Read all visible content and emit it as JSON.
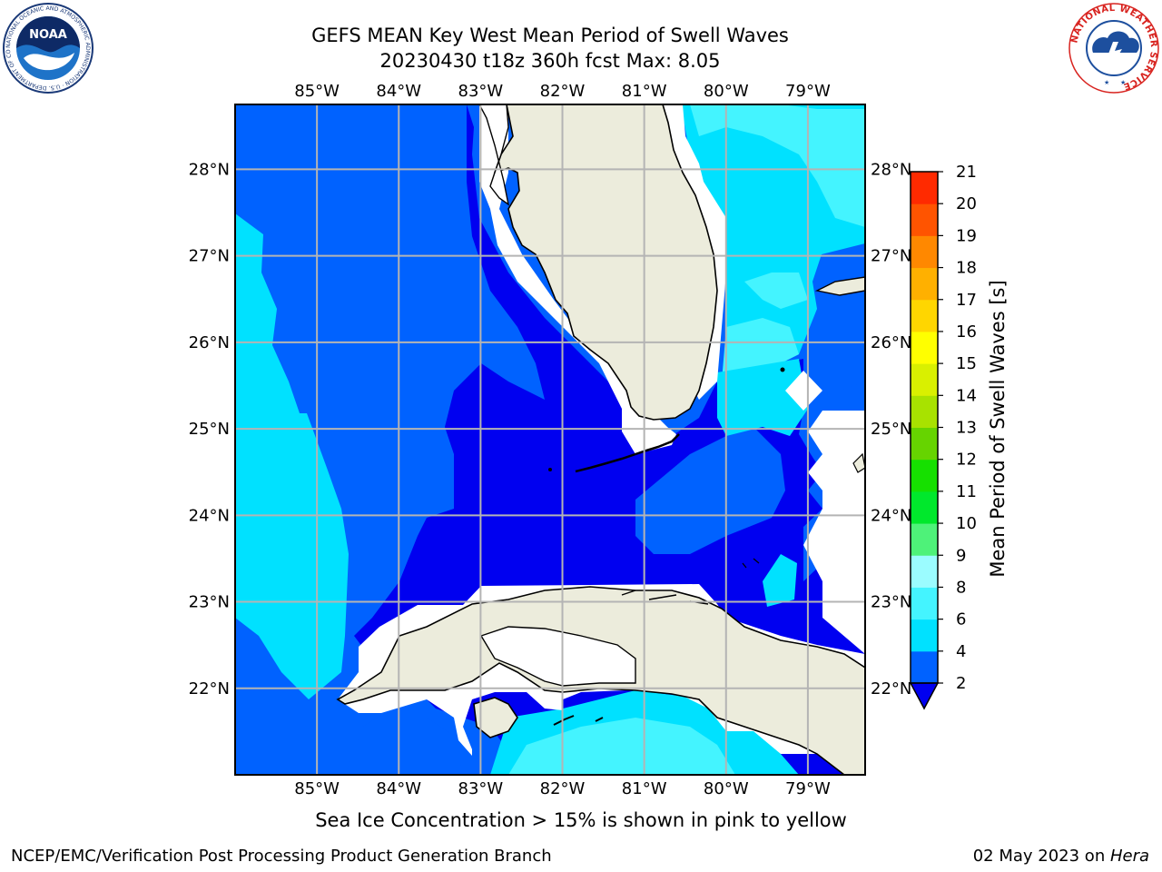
{
  "title": {
    "line1": "GEFS MEAN Key West Mean Period of Swell Waves",
    "line2": "20230430 t18z 360h fcst   Max: 8.05"
  },
  "subtitle": "Sea Ice Concentration > 15% is shown in pink to yellow",
  "footer": {
    "left": "NCEP/EMC/Verification Post Processing Product Generation Branch",
    "date": "02 May 2023 on ",
    "host": "Hera"
  },
  "logos": {
    "noaa_text": "NOAA",
    "noaa_ring": "NATIONAL OCEANIC AND ATMOSPHERIC ADMINISTRATION · U.S. DEPARTMENT OF COMMERCE ·",
    "nws_ring": "NATIONAL WEATHER SERVICE"
  },
  "map": {
    "lon_labels": [
      "85°W",
      "84°W",
      "83°W",
      "82°W",
      "81°W",
      "80°W",
      "79°W"
    ],
    "lat_labels": [
      "28°N",
      "27°N",
      "26°N",
      "25°N",
      "24°N",
      "23°N",
      "22°N"
    ],
    "lon_values": [
      -85,
      -84,
      -83,
      -82,
      -81,
      -80,
      -79
    ],
    "lat_values": [
      28,
      27,
      26,
      25,
      24,
      23,
      22
    ],
    "lon_range": [
      -86.0,
      -78.3
    ],
    "lat_range": [
      21.0,
      28.75
    ],
    "colors": {
      "land": "#ececdc",
      "nodata": "#ffffff",
      "grid": "#b4b4b4",
      "coast": "#000000"
    }
  },
  "colorbar": {
    "label": "Mean Period of Swell Waves [s]",
    "ticks": [
      "2",
      "4",
      "6",
      "8",
      "9",
      "10",
      "11",
      "12",
      "13",
      "14",
      "15",
      "16",
      "17",
      "18",
      "19",
      "20",
      "21"
    ],
    "levels": [
      2,
      4,
      6,
      8,
      9,
      10,
      11,
      12,
      13,
      14,
      15,
      16,
      17,
      18,
      19,
      20,
      21
    ],
    "colors": [
      "#0062ff",
      "#00e1ff",
      "#44f4ff",
      "#9bfcff",
      "#4ef279",
      "#00e82c",
      "#16e000",
      "#66d400",
      "#a8e200",
      "#d9f000",
      "#ffff00",
      "#ffd600",
      "#ffb000",
      "#ff8800",
      "#ff5400",
      "#ff2a00"
    ],
    "extend_color": "#0000f0"
  }
}
